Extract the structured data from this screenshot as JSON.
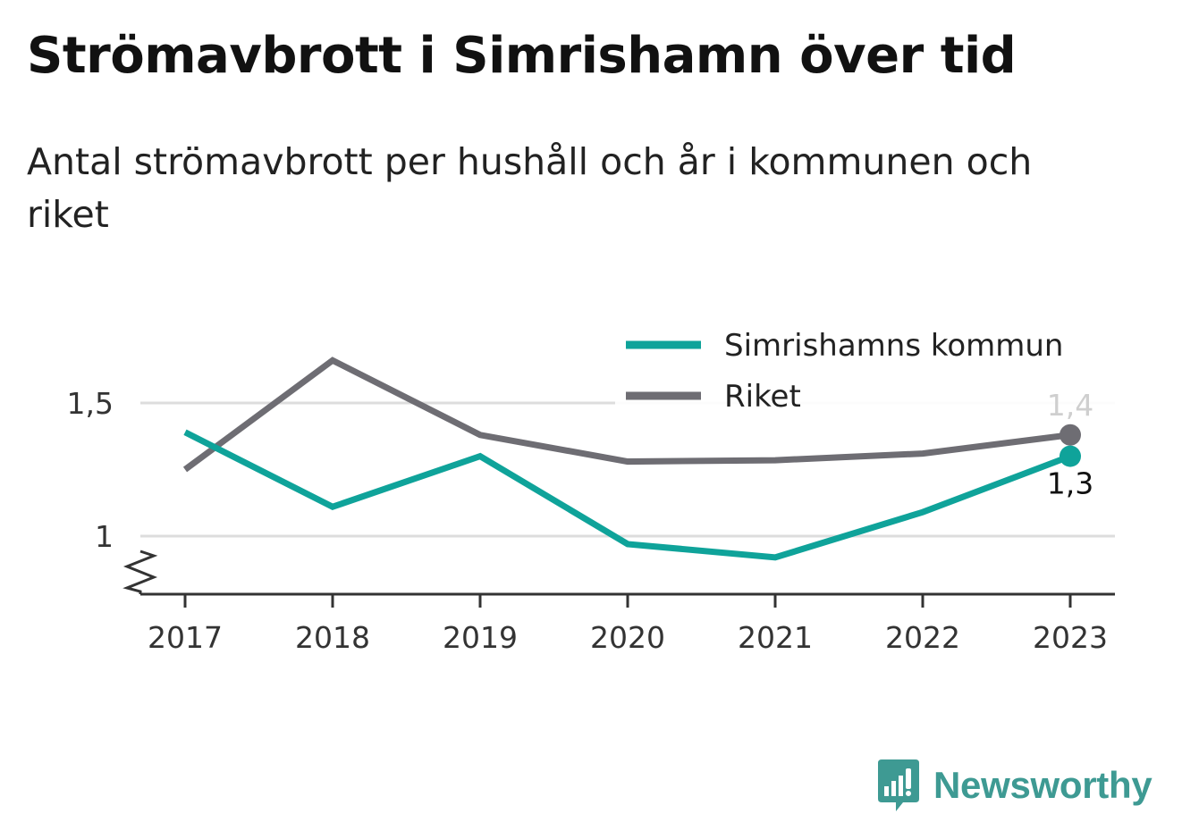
{
  "title": "Strömavbrott i Simrishamn över tid",
  "subtitle": "Antal strömavbrott per hushåll och år i kommunen och riket",
  "brand": {
    "name": "Newsworthy",
    "color": "#3e9a93",
    "icon": "newsworthy-logo-icon"
  },
  "colors": {
    "kommun": "#0fa39a",
    "riket": "#6e6d73",
    "grid": "#dddddd",
    "axis": "#333333"
  },
  "chart_data": {
    "type": "line",
    "categories": [
      "2017",
      "2018",
      "2019",
      "2020",
      "2021",
      "2022",
      "2023"
    ],
    "y_ticks": [
      {
        "value": 1,
        "label": "1"
      },
      {
        "value": 1.5,
        "label": "1,5"
      }
    ],
    "ylim": [
      0.78,
      1.75
    ],
    "y_axis_broken": true,
    "grid": true,
    "legend": "top-right",
    "series": [
      {
        "key": "kommun",
        "name": "Simrishamns kommun",
        "values": [
          1.39,
          1.11,
          1.3,
          0.97,
          0.92,
          1.09,
          1.3
        ],
        "end_label": "1,3",
        "end_label_position": "below"
      },
      {
        "key": "riket",
        "name": "Riket",
        "values": [
          1.25,
          1.66,
          1.38,
          1.28,
          1.285,
          1.31,
          1.38
        ],
        "end_label": "1,4",
        "end_label_position": "above"
      }
    ]
  }
}
